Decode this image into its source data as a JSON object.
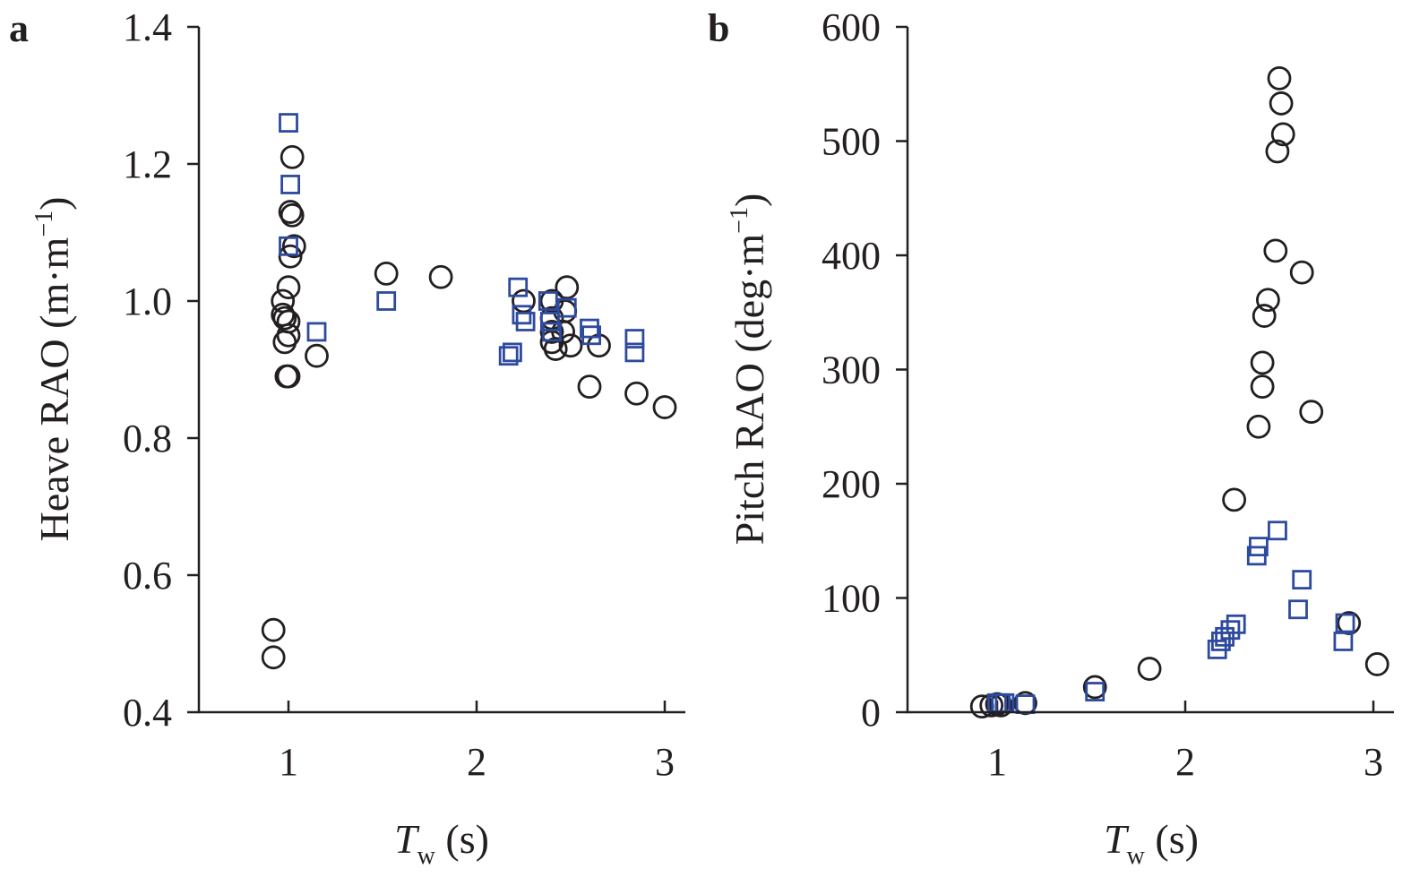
{
  "chart_data": [
    {
      "type": "scatter",
      "panel_label": "a",
      "xlabel": {
        "var": "T",
        "sub": "w",
        "unit": " (s)"
      },
      "ylabel": {
        "text": "Heave RAO (m·m",
        "sup": "−1",
        "end": ")"
      },
      "xlim": [
        0.5,
        3.1
      ],
      "ylim": [
        0.4,
        1.4
      ],
      "xticks": [
        1,
        2,
        3
      ],
      "xtick_labels": [
        "1",
        "2",
        "3"
      ],
      "yticks": [
        0.4,
        0.6,
        0.8,
        1.0,
        1.2,
        1.4
      ],
      "ytick_labels": [
        "0.4",
        "0.6",
        "0.8",
        "1.0",
        "1.2",
        "1.4"
      ],
      "grid": false,
      "series": [
        {
          "marker": "circle",
          "color": "#231f20",
          "points": [
            [
              0.92,
              0.52
            ],
            [
              0.92,
              0.48
            ],
            [
              0.97,
              1.0
            ],
            [
              0.97,
              0.98
            ],
            [
              0.98,
              0.94
            ],
            [
              0.98,
              0.975
            ],
            [
              0.99,
              0.89
            ],
            [
              1.0,
              0.89
            ],
            [
              1.0,
              0.95
            ],
            [
              1.0,
              1.02
            ],
            [
              1.0,
              0.97
            ],
            [
              1.01,
              1.065
            ],
            [
              1.01,
              1.13
            ],
            [
              1.02,
              1.125
            ],
            [
              1.02,
              1.21
            ],
            [
              1.03,
              1.08
            ],
            [
              1.15,
              0.92
            ],
            [
              1.52,
              1.04
            ],
            [
              1.81,
              1.035
            ],
            [
              2.25,
              1.0
            ],
            [
              2.4,
              1.0
            ],
            [
              2.4,
              0.975
            ],
            [
              2.4,
              0.955
            ],
            [
              2.4,
              0.94
            ],
            [
              2.42,
              0.93
            ],
            [
              2.46,
              0.955
            ],
            [
              2.47,
              0.985
            ],
            [
              2.48,
              1.02
            ],
            [
              2.5,
              0.935
            ],
            [
              2.6,
              0.875
            ],
            [
              2.65,
              0.935
            ],
            [
              2.85,
              0.865
            ],
            [
              3.0,
              0.845
            ]
          ]
        },
        {
          "marker": "square",
          "color": "#2e4a9e",
          "points": [
            [
              1.0,
              1.26
            ],
            [
              1.01,
              1.17
            ],
            [
              1.0,
              1.08
            ],
            [
              1.15,
              0.955
            ],
            [
              1.52,
              1.0
            ],
            [
              2.17,
              0.92
            ],
            [
              2.19,
              0.925
            ],
            [
              2.22,
              1.02
            ],
            [
              2.24,
              0.98
            ],
            [
              2.26,
              0.97
            ],
            [
              2.38,
              1.0
            ],
            [
              2.39,
              0.97
            ],
            [
              2.4,
              0.955
            ],
            [
              2.48,
              0.99
            ],
            [
              2.6,
              0.96
            ],
            [
              2.61,
              0.95
            ],
            [
              2.84,
              0.945
            ],
            [
              2.84,
              0.925
            ]
          ]
        }
      ]
    },
    {
      "type": "scatter",
      "panel_label": "b",
      "xlabel": {
        "var": "T",
        "sub": "w",
        "unit": " (s)"
      },
      "ylabel": {
        "text": "Pitch RAO (deg·m",
        "sup": "−1",
        "end": ")"
      },
      "xlim": [
        0.5,
        3.1
      ],
      "ylim": [
        0,
        600
      ],
      "xticks": [
        1,
        2,
        3
      ],
      "xtick_labels": [
        "1",
        "2",
        "3"
      ],
      "yticks": [
        0,
        100,
        200,
        300,
        400,
        500,
        600
      ],
      "ytick_labels": [
        "0",
        "100",
        "200",
        "300",
        "400",
        "500",
        "600"
      ],
      "grid": false,
      "series": [
        {
          "marker": "circle",
          "color": "#231f20",
          "points": [
            [
              0.92,
              5
            ],
            [
              0.97,
              6
            ],
            [
              1.0,
              7
            ],
            [
              1.02,
              6
            ],
            [
              1.15,
              8
            ],
            [
              1.52,
              22
            ],
            [
              1.81,
              38
            ],
            [
              2.26,
              186
            ],
            [
              2.39,
              250
            ],
            [
              2.41,
              285
            ],
            [
              2.41,
              306
            ],
            [
              2.42,
              347
            ],
            [
              2.44,
              361
            ],
            [
              2.48,
              404
            ],
            [
              2.49,
              491
            ],
            [
              2.5,
              555
            ],
            [
              2.51,
              533
            ],
            [
              2.52,
              506
            ],
            [
              2.62,
              385
            ],
            [
              2.67,
              263
            ],
            [
              2.87,
              78
            ],
            [
              3.02,
              42
            ]
          ]
        },
        {
          "marker": "square",
          "color": "#2e4a9e",
          "points": [
            [
              1.0,
              8
            ],
            [
              1.02,
              8
            ],
            [
              1.04,
              8
            ],
            [
              1.15,
              7
            ],
            [
              1.52,
              18
            ],
            [
              2.17,
              55
            ],
            [
              2.19,
              62
            ],
            [
              2.21,
              66
            ],
            [
              2.24,
              72
            ],
            [
              2.27,
              77
            ],
            [
              2.38,
              137
            ],
            [
              2.39,
              145
            ],
            [
              2.49,
              159
            ],
            [
              2.6,
              90
            ],
            [
              2.62,
              116
            ],
            [
              2.84,
              62
            ],
            [
              2.85,
              78
            ]
          ]
        }
      ]
    }
  ]
}
